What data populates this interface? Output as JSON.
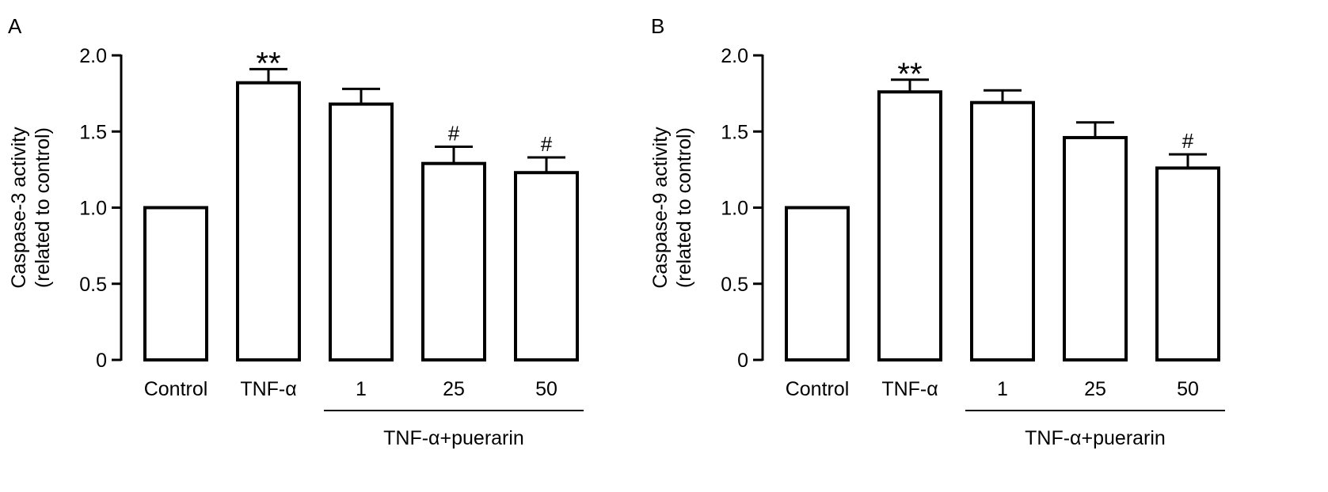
{
  "chart_data": [
    {
      "type": "bar",
      "panel_label": "A",
      "ylabel": "Caspase-3 activity",
      "ylabel2": "(related to control)",
      "xlabel": "",
      "group_label": "TNF-α+puerarin",
      "categories": [
        "Control",
        "TNF-α",
        "1",
        "25",
        "50"
      ],
      "values": [
        1.0,
        1.82,
        1.68,
        1.29,
        1.23
      ],
      "errors": [
        0.0,
        0.09,
        0.1,
        0.11,
        0.1
      ],
      "annotations": [
        "",
        "**",
        "",
        "#",
        "#"
      ],
      "yticks": [
        "0",
        "0.5",
        "1.0",
        "1.5",
        "2.0"
      ],
      "ylim": [
        0,
        2.0
      ],
      "grid": false,
      "legend": "none"
    },
    {
      "type": "bar",
      "panel_label": "B",
      "ylabel": "Caspase-9 activity",
      "ylabel2": "(related to control)",
      "xlabel": "",
      "group_label": "TNF-α+puerarin",
      "categories": [
        "Control",
        "TNF-α",
        "1",
        "25",
        "50"
      ],
      "values": [
        1.0,
        1.76,
        1.69,
        1.46,
        1.26
      ],
      "errors": [
        0.0,
        0.08,
        0.08,
        0.1,
        0.09
      ],
      "annotations": [
        "",
        "**",
        "",
        "",
        "#"
      ],
      "yticks": [
        "0",
        "0.5",
        "1.0",
        "1.5",
        "2.0"
      ],
      "ylim": [
        0,
        2.0
      ],
      "grid": false,
      "legend": "none"
    }
  ]
}
